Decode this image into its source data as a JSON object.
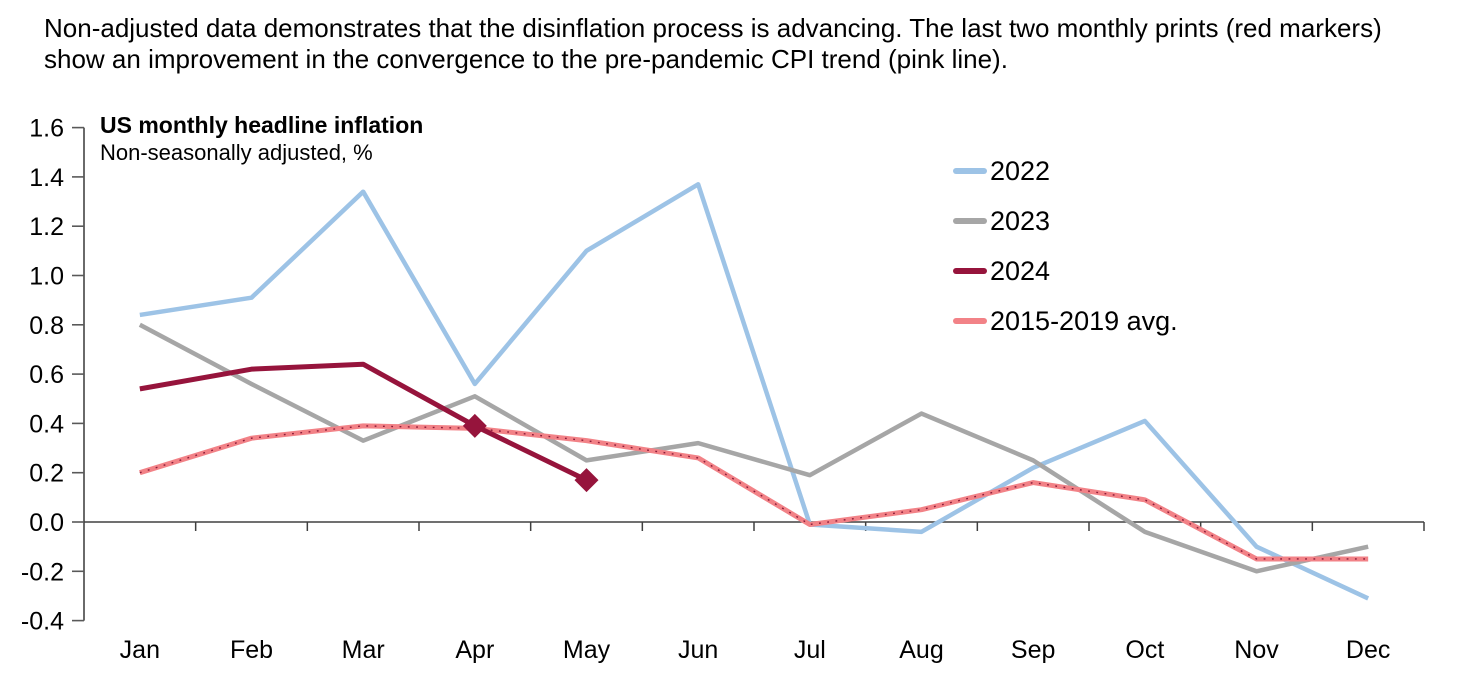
{
  "header": {
    "lines": [
      "Non-adjusted data demonstrates that the disinflation process is advancing. The last two monthly prints (red markers)",
      "show an improvement in the convergence to the pre-pandemic CPI trend (pink line)."
    ]
  },
  "chart": {
    "title": "US monthly headline inflation",
    "subtitle": "Non-seasonally adjusted, %"
  },
  "chart_data": {
    "type": "line",
    "title": "US monthly headline inflation",
    "subtitle": "Non-seasonally adjusted, %",
    "categories": [
      "Jan",
      "Feb",
      "Mar",
      "Apr",
      "May",
      "Jun",
      "Jul",
      "Aug",
      "Sep",
      "Oct",
      "Nov",
      "Dec"
    ],
    "series": [
      {
        "name": "2022",
        "color": "#9DC3E6",
        "values": [
          0.84,
          0.91,
          1.34,
          0.56,
          1.1,
          1.37,
          -0.01,
          -0.04,
          0.22,
          0.41,
          -0.1,
          -0.31
        ]
      },
      {
        "name": "2023",
        "color": "#A6A6A6",
        "values": [
          0.8,
          0.56,
          0.33,
          0.51,
          0.25,
          0.32,
          0.19,
          0.44,
          0.25,
          -0.04,
          -0.2,
          -0.1
        ]
      },
      {
        "name": "2024",
        "color": "#96143C",
        "values": [
          0.54,
          0.62,
          0.64,
          0.39,
          0.17
        ],
        "marker": {
          "type": "diamond",
          "indices": [
            3,
            4
          ],
          "color": "#96143C"
        }
      },
      {
        "name": "2015-2019 avg.",
        "color": "#F28287",
        "dot_overlay_color": "#8B1A38",
        "values": [
          0.2,
          0.34,
          0.39,
          0.38,
          0.33,
          0.26,
          -0.01,
          0.05,
          0.16,
          0.09,
          -0.15,
          -0.15
        ]
      }
    ],
    "ylim": [
      -0.4,
      1.6
    ],
    "ytick_step": 0.2,
    "xlabel": "",
    "ylabel": "",
    "grid": false,
    "legend_position": "inside-upper-right",
    "axis_color": "#595959",
    "text_color": "#000000"
  }
}
